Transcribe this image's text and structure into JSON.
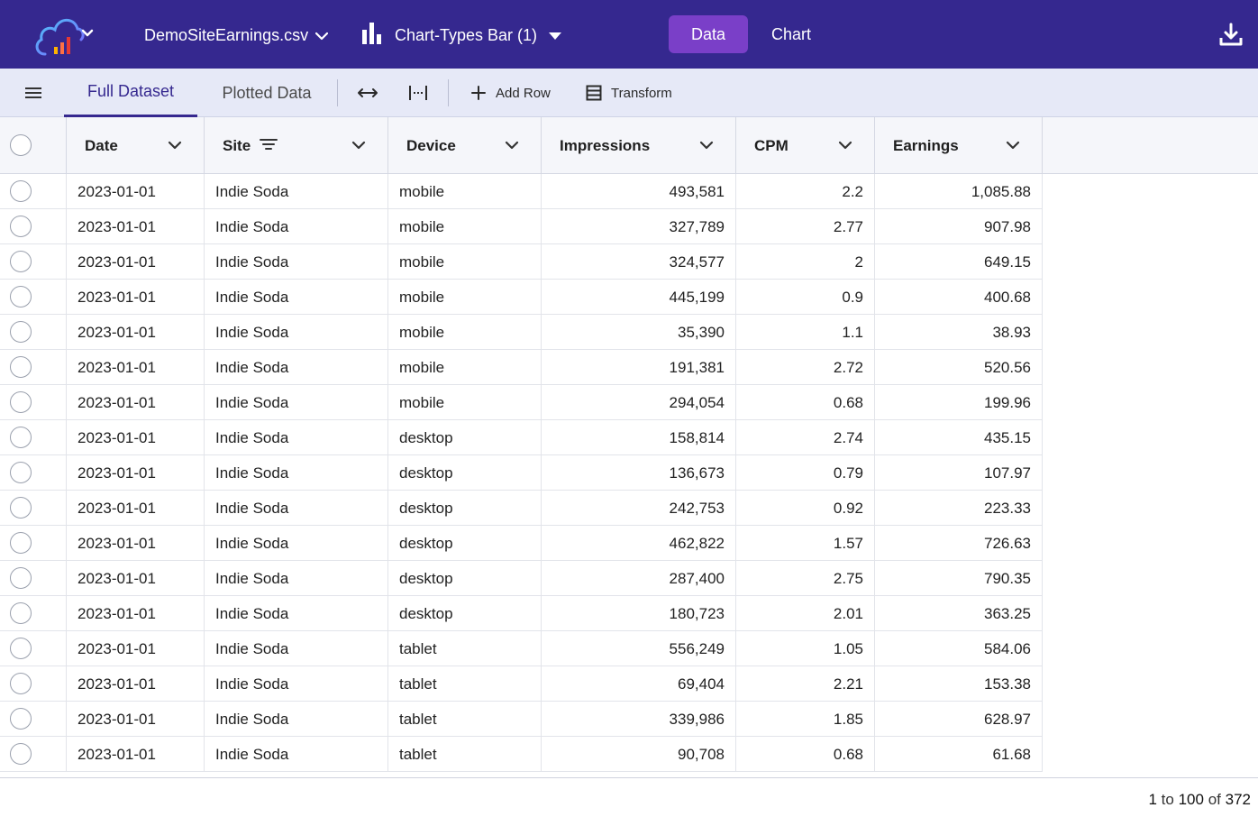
{
  "topbar": {
    "file_name": "DemoSiteEarnings.csv",
    "chart_name": "Chart-Types Bar (1)",
    "toggle_data_label": "Data",
    "toggle_chart_label": "Chart",
    "accent_color": "#35288f",
    "active_toggle_color": "#7a3fc8",
    "icons": [
      "cloud-chart-logo-icon",
      "chevron-down-icon",
      "bar-chart-icon",
      "caret-down-icon",
      "download-icon"
    ]
  },
  "toolbar": {
    "tabs": [
      {
        "label": "Full Dataset",
        "active": true
      },
      {
        "label": "Plotted Data",
        "active": false
      }
    ],
    "add_row_label": "Add Row",
    "transform_label": "Transform",
    "icons": [
      "menu-icon",
      "fit-columns-icon",
      "column-width-icon",
      "plus-icon",
      "table-icon"
    ]
  },
  "grid": {
    "columns": [
      {
        "label": "Date",
        "align": "left"
      },
      {
        "label": "Site",
        "align": "left",
        "filtered": true
      },
      {
        "label": "Device",
        "align": "left"
      },
      {
        "label": "Impressions",
        "align": "right"
      },
      {
        "label": "CPM",
        "align": "right"
      },
      {
        "label": "Earnings",
        "align": "right"
      }
    ],
    "rows": [
      [
        "2023-01-01",
        "Indie Soda",
        "mobile",
        "493,581",
        "2.2",
        "1,085.88"
      ],
      [
        "2023-01-01",
        "Indie Soda",
        "mobile",
        "327,789",
        "2.77",
        "907.98"
      ],
      [
        "2023-01-01",
        "Indie Soda",
        "mobile",
        "324,577",
        "2",
        "649.15"
      ],
      [
        "2023-01-01",
        "Indie Soda",
        "mobile",
        "445,199",
        "0.9",
        "400.68"
      ],
      [
        "2023-01-01",
        "Indie Soda",
        "mobile",
        "35,390",
        "1.1",
        "38.93"
      ],
      [
        "2023-01-01",
        "Indie Soda",
        "mobile",
        "191,381",
        "2.72",
        "520.56"
      ],
      [
        "2023-01-01",
        "Indie Soda",
        "mobile",
        "294,054",
        "0.68",
        "199.96"
      ],
      [
        "2023-01-01",
        "Indie Soda",
        "desktop",
        "158,814",
        "2.74",
        "435.15"
      ],
      [
        "2023-01-01",
        "Indie Soda",
        "desktop",
        "136,673",
        "0.79",
        "107.97"
      ],
      [
        "2023-01-01",
        "Indie Soda",
        "desktop",
        "242,753",
        "0.92",
        "223.33"
      ],
      [
        "2023-01-01",
        "Indie Soda",
        "desktop",
        "462,822",
        "1.57",
        "726.63"
      ],
      [
        "2023-01-01",
        "Indie Soda",
        "desktop",
        "287,400",
        "2.75",
        "790.35"
      ],
      [
        "2023-01-01",
        "Indie Soda",
        "desktop",
        "180,723",
        "2.01",
        "363.25"
      ],
      [
        "2023-01-01",
        "Indie Soda",
        "tablet",
        "556,249",
        "1.05",
        "584.06"
      ],
      [
        "2023-01-01",
        "Indie Soda",
        "tablet",
        "69,404",
        "2.21",
        "153.38"
      ],
      [
        "2023-01-01",
        "Indie Soda",
        "tablet",
        "339,986",
        "1.85",
        "628.97"
      ],
      [
        "2023-01-01",
        "Indie Soda",
        "tablet",
        "90,708",
        "0.68",
        "61.68"
      ]
    ]
  },
  "pager": {
    "from": "1",
    "to_word": "to",
    "to": "100",
    "of_word": "of",
    "total": "372"
  }
}
